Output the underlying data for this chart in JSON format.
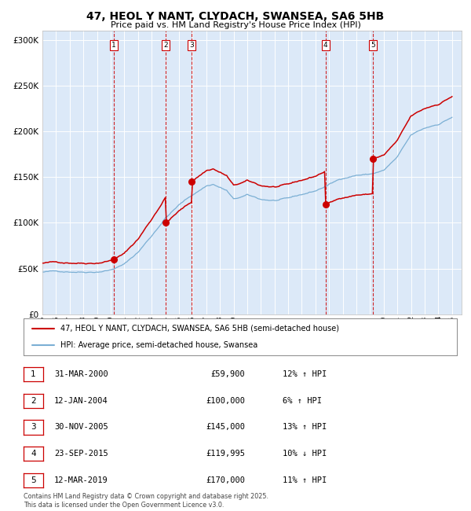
{
  "title": "47, HEOL Y NANT, CLYDACH, SWANSEA, SA6 5HB",
  "subtitle": "Price paid vs. HM Land Registry's House Price Index (HPI)",
  "legend_line1": "47, HEOL Y NANT, CLYDACH, SWANSEA, SA6 5HB (semi-detached house)",
  "legend_line2": "HPI: Average price, semi-detached house, Swansea",
  "footer": "Contains HM Land Registry data © Crown copyright and database right 2025.\nThis data is licensed under the Open Government Licence v3.0.",
  "transactions": [
    {
      "num": 1,
      "date": "31-MAR-2000",
      "price": 59900,
      "pct": "12%",
      "dir": "↑"
    },
    {
      "num": 2,
      "date": "12-JAN-2004",
      "price": 100000,
      "pct": "6%",
      "dir": "↑"
    },
    {
      "num": 3,
      "date": "30-NOV-2005",
      "price": 145000,
      "pct": "13%",
      "dir": "↑"
    },
    {
      "num": 4,
      "date": "23-SEP-2015",
      "price": 119995,
      "pct": "10%",
      "dir": "↓"
    },
    {
      "num": 5,
      "date": "12-MAR-2019",
      "price": 170000,
      "pct": "11%",
      "dir": "↑"
    }
  ],
  "transaction_dates_decimal": [
    2000.25,
    2004.04,
    2005.92,
    2015.73,
    2019.19
  ],
  "plot_bg_color": "#dce9f8",
  "red_line_color": "#cc0000",
  "blue_line_color": "#7bafd4",
  "grid_color": "#ffffff",
  "vline_color": "#cc0000",
  "ylim": [
    0,
    310000
  ],
  "yticks": [
    0,
    50000,
    100000,
    150000,
    200000,
    250000,
    300000
  ],
  "xlim_start": 1995.0,
  "xlim_end": 2025.7,
  "hpi_anchors": [
    [
      1995.0,
      46000
    ],
    [
      1996.0,
      46500
    ],
    [
      1997.0,
      47000
    ],
    [
      1998.0,
      47500
    ],
    [
      1999.0,
      48500
    ],
    [
      2000.0,
      51000
    ],
    [
      2001.0,
      57000
    ],
    [
      2002.0,
      70000
    ],
    [
      2003.0,
      88000
    ],
    [
      2004.0,
      108000
    ],
    [
      2005.0,
      122000
    ],
    [
      2006.0,
      133000
    ],
    [
      2007.0,
      143000
    ],
    [
      2007.5,
      145000
    ],
    [
      2008.5,
      138000
    ],
    [
      2009.0,
      128000
    ],
    [
      2010.0,
      132000
    ],
    [
      2011.0,
      127000
    ],
    [
      2012.0,
      126000
    ],
    [
      2013.0,
      127000
    ],
    [
      2014.0,
      131000
    ],
    [
      2015.0,
      135000
    ],
    [
      2016.0,
      142000
    ],
    [
      2017.0,
      149000
    ],
    [
      2018.0,
      153000
    ],
    [
      2019.0,
      154000
    ],
    [
      2019.5,
      156000
    ],
    [
      2020.0,
      158000
    ],
    [
      2021.0,
      172000
    ],
    [
      2022.0,
      195000
    ],
    [
      2023.0,
      202000
    ],
    [
      2024.0,
      207000
    ],
    [
      2025.0,
      215000
    ]
  ]
}
